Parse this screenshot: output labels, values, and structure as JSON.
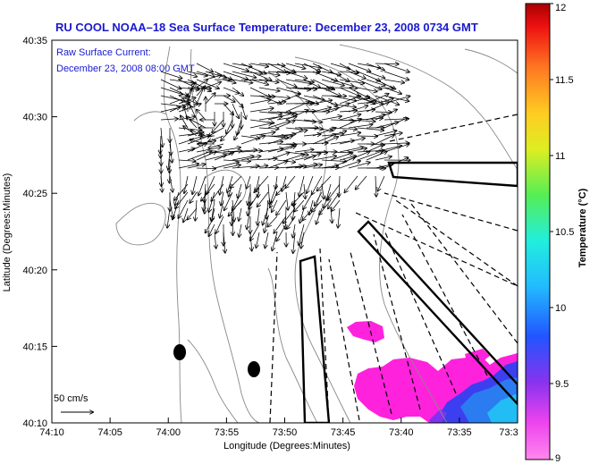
{
  "title": "RU COOL  NOAA–18  Sea Surface Temperature:  December 23, 2008 0734 GMT",
  "subtitle_line1": "Raw Surface Current:",
  "subtitle_line2": "December 23, 2008 08:00 GMT",
  "scale_label": "50 cm/s",
  "xlabel": "Longitude (Degrees:Minutes)",
  "ylabel": "Latitude (Degrees:Minutes)",
  "colorbar_label": "Temperature (°C)",
  "colors": {
    "title": "#1a1ad0",
    "contour": "#888888",
    "hot": "#ff22dd",
    "cold": "#3344ee"
  },
  "chart_data": {
    "type": "heatmap",
    "title": "RU COOL  NOAA–18  Sea Surface Temperature:  December 23, 2008 0734 GMT",
    "xlabel": "Longitude (Degrees:Minutes)",
    "ylabel": "Latitude (Degrees:Minutes)",
    "x_ticks": [
      "74:10",
      "74:05",
      "74:00",
      "73:55",
      "73:50",
      "73:45",
      "73:40",
      "73:35",
      "73:3"
    ],
    "y_ticks": [
      "40:35",
      "40:30",
      "40:25",
      "40:20",
      "40:15",
      "40:10"
    ],
    "colorbar": {
      "label": "Temperature (°C)",
      "ticks": [
        "12",
        "11.5",
        "11",
        "10.5",
        "10",
        "9.5",
        "9"
      ],
      "range": [
        9,
        12
      ]
    }
  }
}
